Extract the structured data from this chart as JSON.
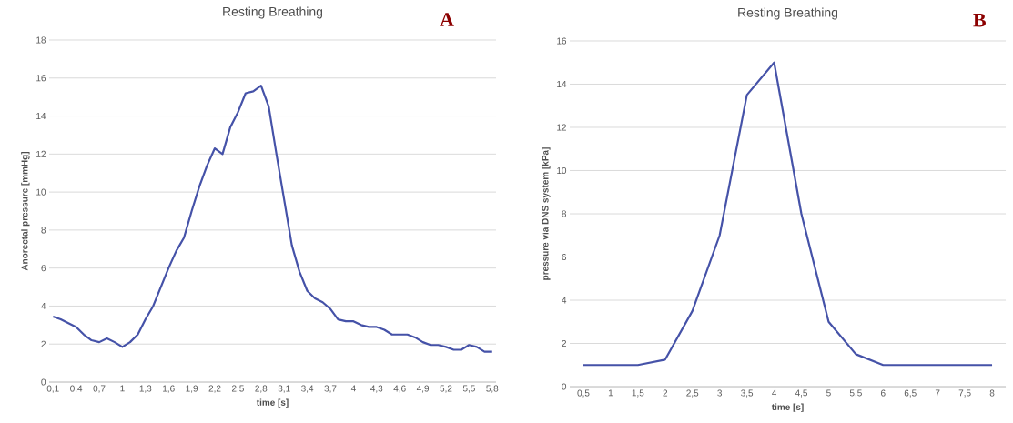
{
  "chart_data": [
    {
      "type": "line",
      "title": "Resting Breathing",
      "xlabel": "time  [s]",
      "ylabel": "Anorectal pressure [mmHg]",
      "categories": [
        "0,1",
        null,
        null,
        "0,4",
        null,
        null,
        "0,7",
        null,
        null,
        "1",
        null,
        null,
        "1,3",
        null,
        null,
        "1,6",
        null,
        null,
        "1,9",
        null,
        null,
        "2,2",
        null,
        null,
        "2,5",
        null,
        null,
        "2,8",
        null,
        null,
        "3,1",
        null,
        null,
        "3,4",
        null,
        null,
        "3,7",
        null,
        null,
        "4",
        null,
        null,
        "4,3",
        null,
        null,
        "4,6",
        null,
        null,
        "4,9",
        null,
        null,
        "5,2",
        null,
        null,
        "5,5",
        null,
        null,
        "5,8"
      ],
      "series": [
        {
          "color": "#4552a8",
          "values": [
            3.45,
            3.3,
            3.1,
            2.9,
            2.5,
            2.2,
            2.1,
            2.3,
            2.1,
            1.85,
            2.1,
            2.5,
            3.3,
            4.0,
            5.0,
            6.0,
            6.9,
            7.6,
            9.0,
            10.3,
            11.4,
            12.3,
            12.0,
            13.4,
            14.2,
            15.2,
            15.3,
            15.6,
            14.5,
            12.0,
            9.6,
            7.2,
            5.8,
            4.8,
            4.4,
            4.2,
            3.85,
            3.3,
            3.2,
            3.2,
            3.0,
            2.9,
            2.9,
            2.75,
            2.5,
            2.5,
            2.5,
            2.35,
            2.1,
            1.95,
            1.95,
            1.85,
            1.7,
            1.7,
            1.95,
            1.85,
            1.6,
            1.6
          ]
        }
      ],
      "ylim": [
        0,
        18
      ],
      "yticks": [
        0,
        2,
        4,
        6,
        8,
        10,
        12,
        14,
        16,
        18
      ],
      "grid": "y",
      "annotations": [
        "A"
      ]
    },
    {
      "type": "line",
      "title": "Resting Breathing",
      "xlabel": "time  [s]",
      "ylabel": "pressure via DNS system [kPa]",
      "categories": [
        "0,5",
        "1",
        "1,5",
        "2",
        "2,5",
        "3",
        "3,5",
        "4",
        "4,5",
        "5",
        "5,5",
        "6",
        "6,5",
        "7",
        "7,5",
        "8"
      ],
      "series": [
        {
          "color": "#4552a8",
          "values": [
            1,
            1,
            1,
            1.25,
            3.5,
            7,
            13.5,
            15,
            8,
            3,
            1.5,
            1,
            1,
            1,
            1,
            1
          ]
        }
      ],
      "ylim": [
        0,
        16
      ],
      "yticks": [
        0,
        2,
        4,
        6,
        8,
        10,
        12,
        14,
        16
      ],
      "grid": "y",
      "annotations": [
        "B"
      ]
    }
  ]
}
